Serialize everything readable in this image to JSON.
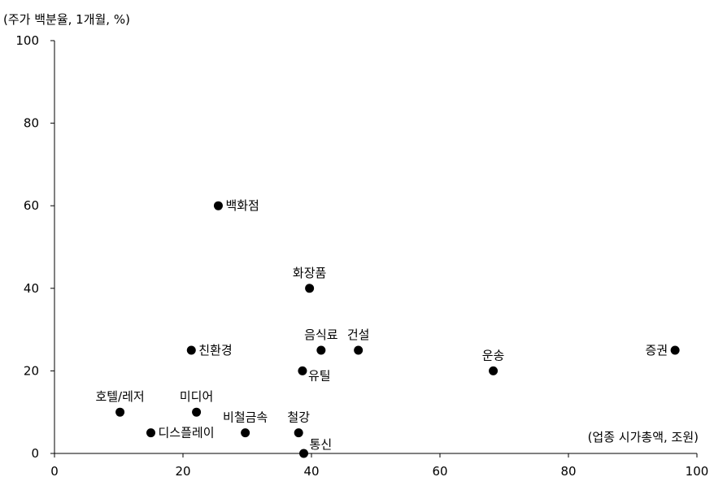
{
  "chart_data": {
    "type": "scatter",
    "title": "",
    "ylabel": "(주가 백분율, 1개월, %)",
    "xlabel": "(업종 시가총액, 조원)",
    "xlim": [
      0,
      100
    ],
    "ylim": [
      0,
      100
    ],
    "x_ticks": [
      0,
      20,
      40,
      60,
      80,
      100
    ],
    "y_ticks": [
      0,
      20,
      40,
      60,
      80,
      100
    ],
    "grid": false,
    "marker_color": "#000000",
    "points": [
      {
        "label": "백화점",
        "x": 25.5,
        "y": 60,
        "label_pos": "right"
      },
      {
        "label": "화장품",
        "x": 39.7,
        "y": 40,
        "label_pos": "above"
      },
      {
        "label": "친환경",
        "x": 21.3,
        "y": 25,
        "label_pos": "right"
      },
      {
        "label": "음식료",
        "x": 41.5,
        "y": 25,
        "label_pos": "above"
      },
      {
        "label": "건설",
        "x": 47.3,
        "y": 25,
        "label_pos": "above"
      },
      {
        "label": "운송",
        "x": 68.3,
        "y": 20,
        "label_pos": "above"
      },
      {
        "label": "증권",
        "x": 96.6,
        "y": 25,
        "label_pos": "left"
      },
      {
        "label": "유틸",
        "x": 38.6,
        "y": 20,
        "label_pos": "right-below"
      },
      {
        "label": "호텔/레저",
        "x": 10.2,
        "y": 10,
        "label_pos": "above"
      },
      {
        "label": "미디어",
        "x": 22.1,
        "y": 10,
        "label_pos": "above"
      },
      {
        "label": "디스플레이",
        "x": 15.0,
        "y": 5,
        "label_pos": "right"
      },
      {
        "label": "비철금속",
        "x": 29.7,
        "y": 5,
        "label_pos": "above"
      },
      {
        "label": "철강",
        "x": 38.0,
        "y": 5,
        "label_pos": "above"
      },
      {
        "label": "통신",
        "x": 38.8,
        "y": 0,
        "label_pos": "right-above"
      }
    ]
  }
}
